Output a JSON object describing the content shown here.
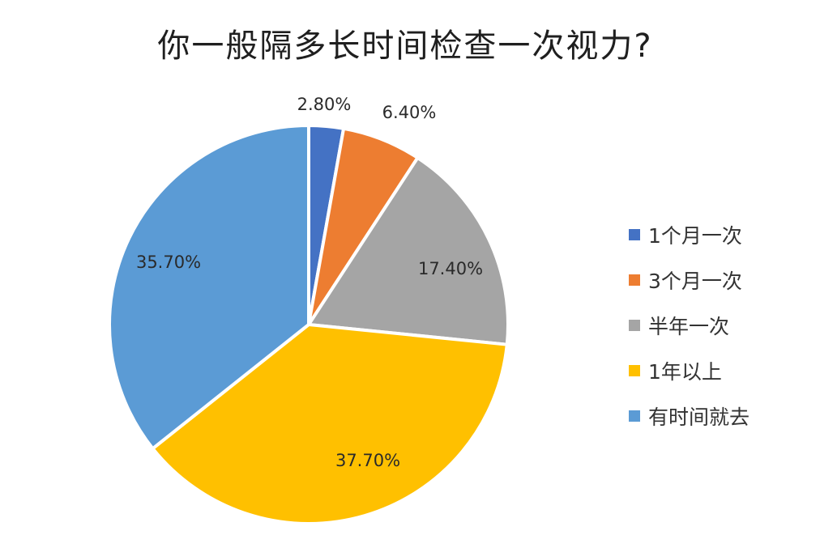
{
  "chart_data": {
    "type": "pie",
    "title": "你一般隔多长时间检查一次视力?",
    "categories": [
      "1个月一次",
      "3个月一次",
      "半年一次",
      "1年以上",
      "有时间就去"
    ],
    "values": [
      2.8,
      6.4,
      17.4,
      37.7,
      35.7
    ],
    "value_labels": [
      "2.80%",
      "6.40%",
      "17.40%",
      "37.70%",
      "35.70%"
    ],
    "colors": [
      "#4472c4",
      "#ed7d31",
      "#a5a5a5",
      "#ffc000",
      "#5b9bd5"
    ],
    "legend_position": "right",
    "start_angle": "12 o'clock",
    "direction": "clockwise"
  }
}
